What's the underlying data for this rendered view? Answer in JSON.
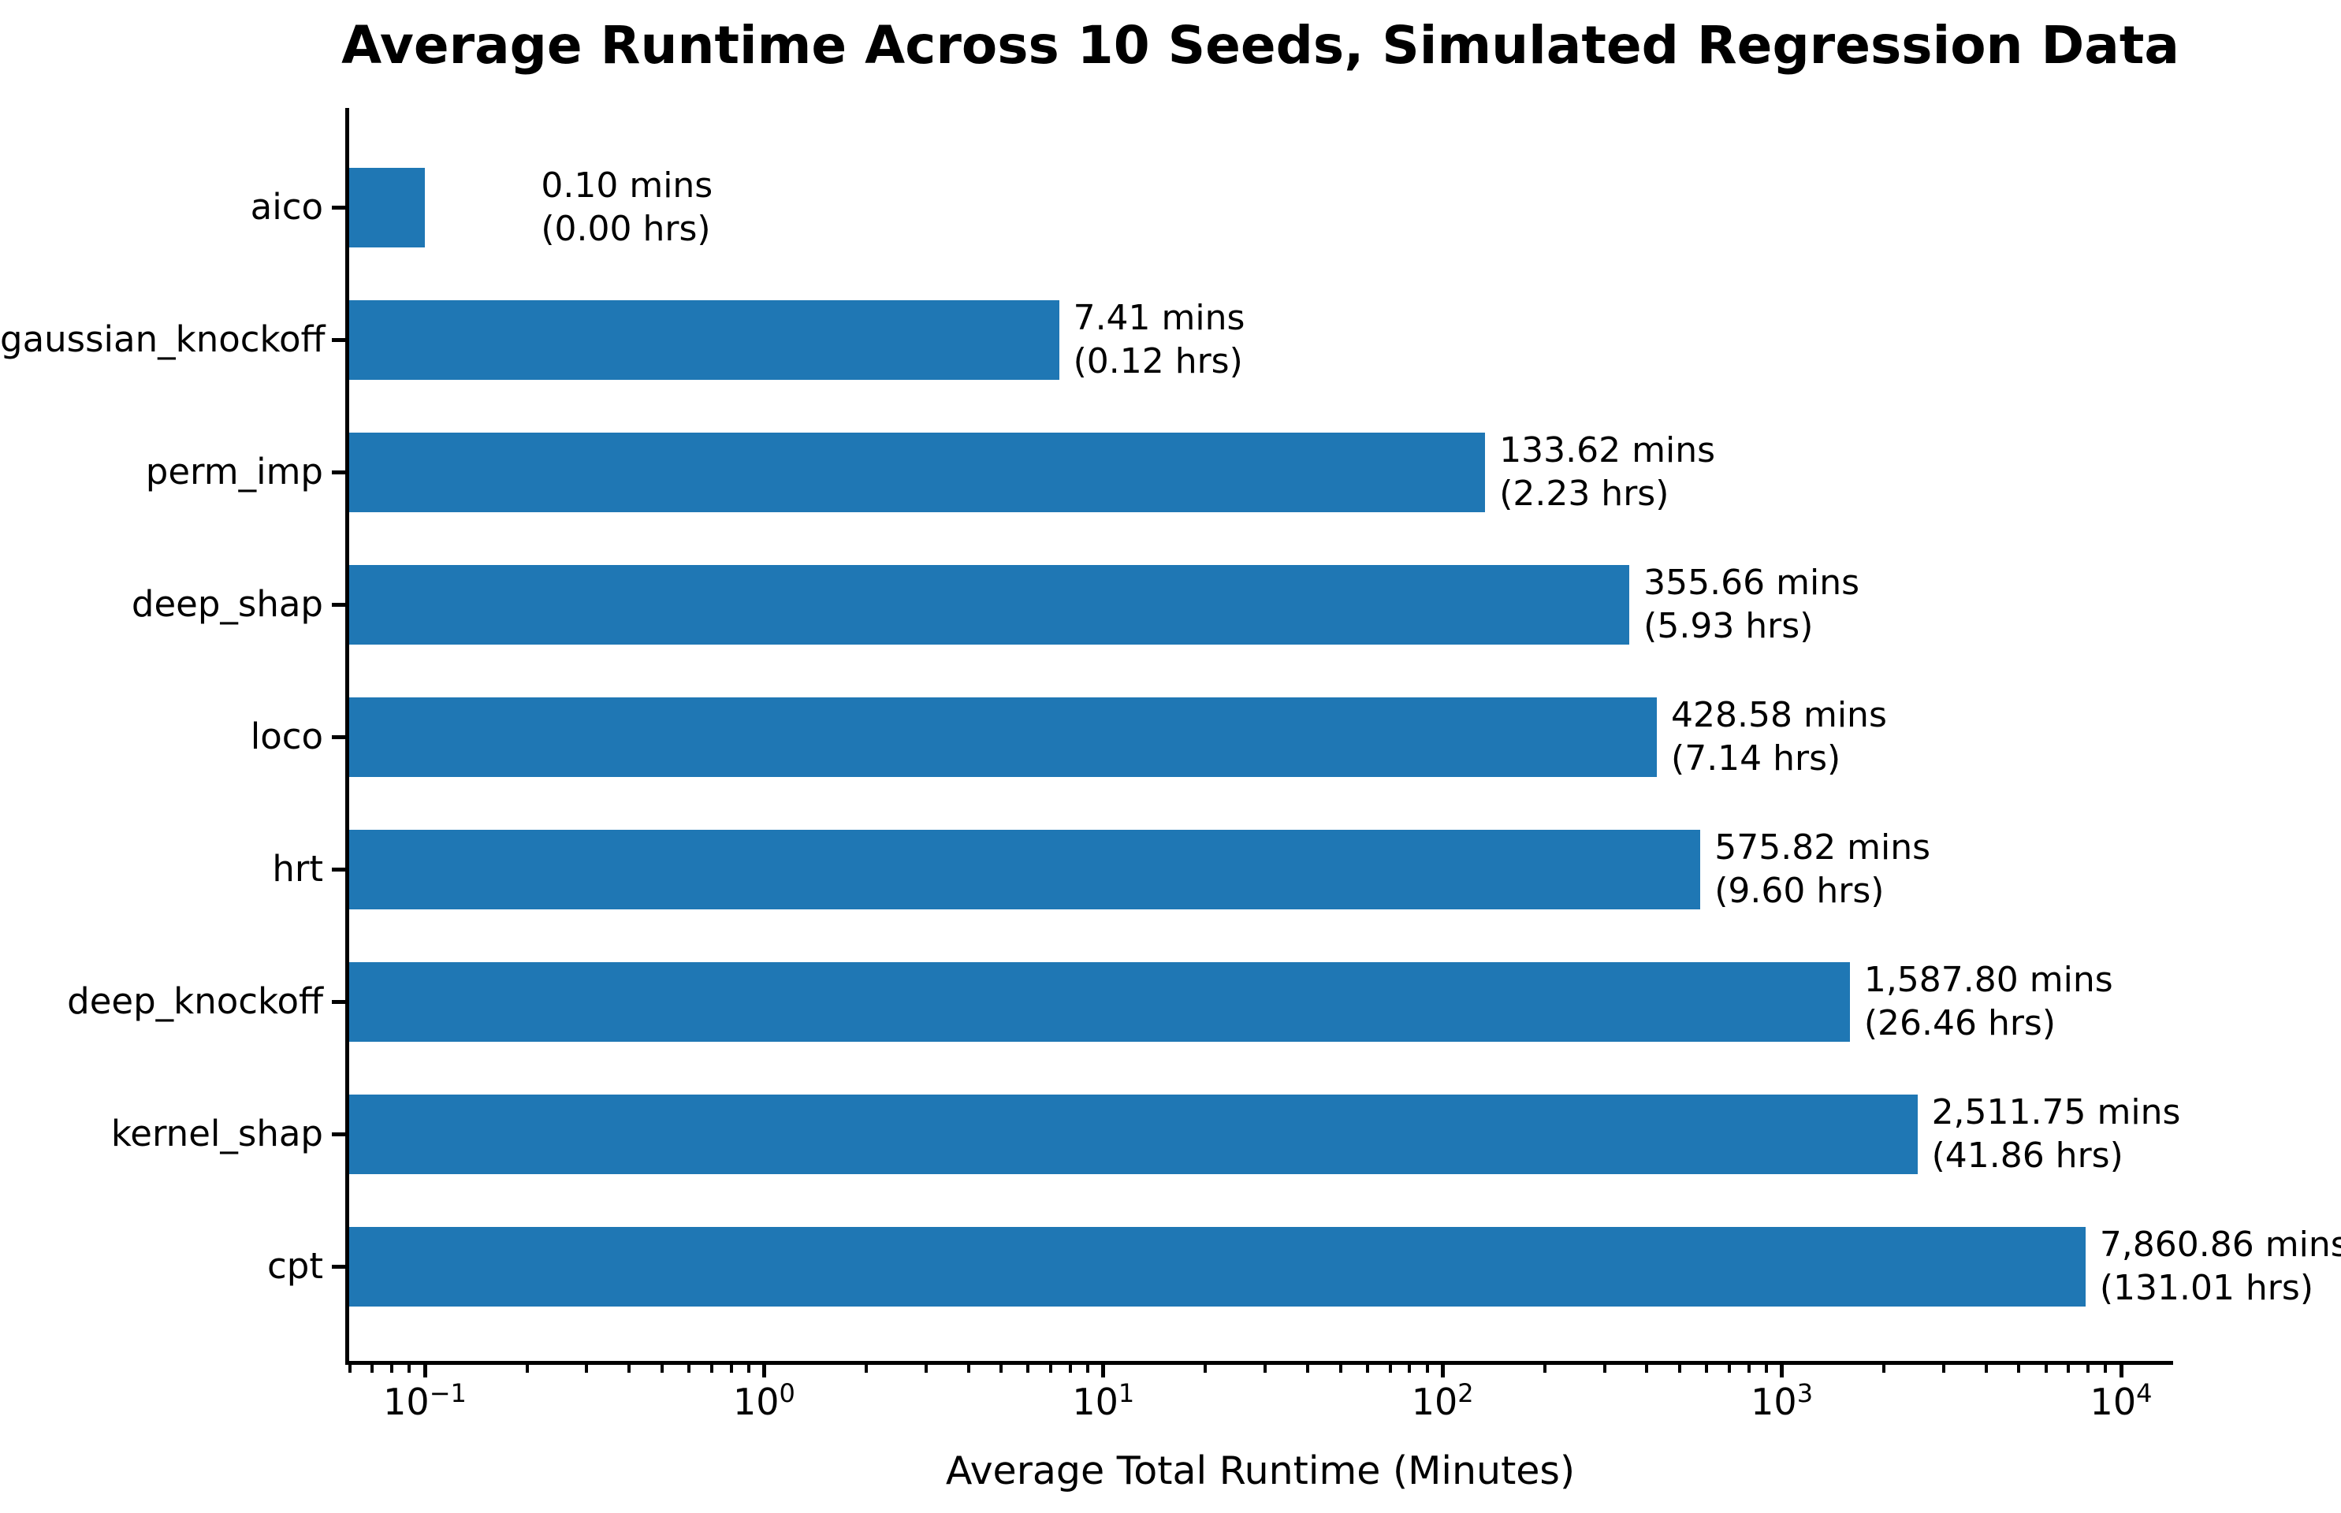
{
  "figure": {
    "title": "Average Runtime Across 10 Seeds, Simulated Regression Data",
    "xlabel": "Average Total Runtime (Minutes)"
  },
  "chart_data": {
    "type": "bar",
    "orientation": "horizontal",
    "title": "Average Runtime Across 10 Seeds, Simulated Regression Data",
    "xlabel": "Average Total Runtime (Minutes)",
    "ylabel": "",
    "xscale": "log",
    "xlim": [
      0.059,
      13800
    ],
    "grid": false,
    "legend": false,
    "bar_color": "#1f77b4",
    "bar_height_fraction": 0.6,
    "x_major_tick_values": [
      0.1,
      1,
      10,
      100,
      1000,
      10000
    ],
    "x_tick_labels": [
      {
        "base": "10",
        "exp": "−1"
      },
      {
        "base": "10",
        "exp": "0"
      },
      {
        "base": "10",
        "exp": "1"
      },
      {
        "base": "10",
        "exp": "2"
      },
      {
        "base": "10",
        "exp": "3"
      },
      {
        "base": "10",
        "exp": "4"
      }
    ],
    "categories": [
      "aico",
      "gaussian_knockoff",
      "perm_imp",
      "deep_shap",
      "loco",
      "hrt",
      "deep_knockoff",
      "kernel_shap",
      "cpt"
    ],
    "values": [
      0.1,
      7.41,
      133.62,
      355.66,
      428.58,
      575.82,
      1587.8,
      2511.75,
      7860.86
    ],
    "bars": [
      {
        "label": "aico",
        "minutes": 0.1,
        "annotation": [
          "0.10 mins",
          "(0.00 hrs)"
        ],
        "label_x_value": 0.22
      },
      {
        "label": "gaussian_knockoff",
        "minutes": 7.41,
        "annotation": [
          "7.41 mins",
          "(0.12 hrs)"
        ]
      },
      {
        "label": "perm_imp",
        "minutes": 133.62,
        "annotation": [
          "133.62 mins",
          "(2.23 hrs)"
        ]
      },
      {
        "label": "deep_shap",
        "minutes": 355.66,
        "annotation": [
          "355.66 mins",
          "(5.93 hrs)"
        ]
      },
      {
        "label": "loco",
        "minutes": 428.58,
        "annotation": [
          "428.58 mins",
          "(7.14 hrs)"
        ]
      },
      {
        "label": "hrt",
        "minutes": 575.82,
        "annotation": [
          "575.82 mins",
          "(9.60 hrs)"
        ]
      },
      {
        "label": "deep_knockoff",
        "minutes": 1587.8,
        "annotation": [
          "1,587.80 mins",
          "(26.46 hrs)"
        ]
      },
      {
        "label": "kernel_shap",
        "minutes": 2511.75,
        "annotation": [
          "2,511.75 mins",
          "(41.86 hrs)"
        ]
      },
      {
        "label": "cpt",
        "minutes": 7860.86,
        "annotation": [
          "7,860.86 mins",
          "(131.01 hrs)"
        ]
      }
    ]
  }
}
